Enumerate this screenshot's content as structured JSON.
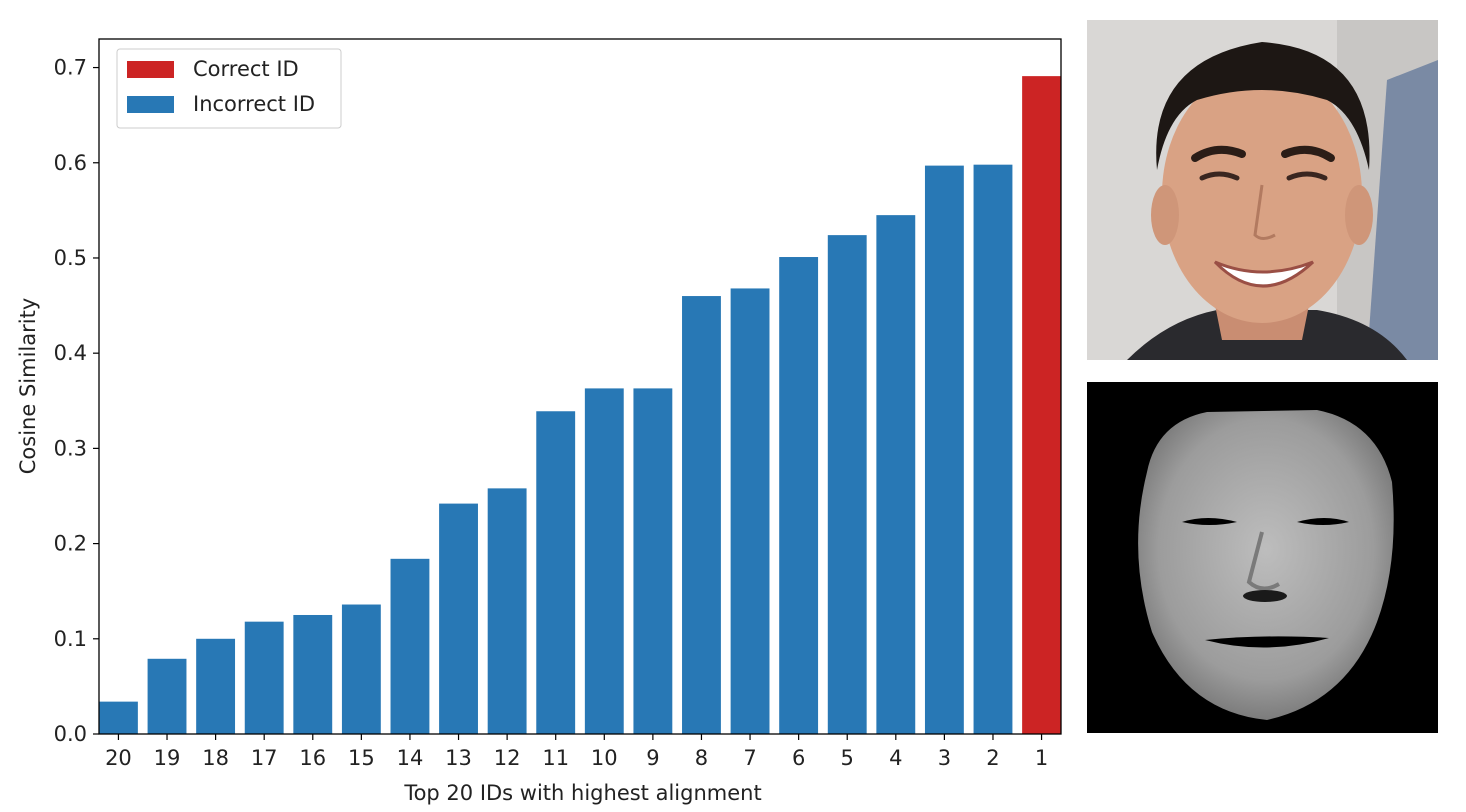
{
  "chart_data": {
    "type": "bar",
    "categories": [
      "20",
      "19",
      "18",
      "17",
      "16",
      "15",
      "14",
      "13",
      "12",
      "11",
      "10",
      "9",
      "8",
      "7",
      "6",
      "5",
      "4",
      "3",
      "2",
      "1"
    ],
    "values": [
      0.034,
      0.079,
      0.1,
      0.118,
      0.125,
      0.136,
      0.184,
      0.242,
      0.258,
      0.339,
      0.363,
      0.363,
      0.46,
      0.468,
      0.501,
      0.524,
      0.545,
      0.597,
      0.598,
      0.691
    ],
    "bar_group": [
      "incorrect",
      "incorrect",
      "incorrect",
      "incorrect",
      "incorrect",
      "incorrect",
      "incorrect",
      "incorrect",
      "incorrect",
      "incorrect",
      "incorrect",
      "incorrect",
      "incorrect",
      "incorrect",
      "incorrect",
      "incorrect",
      "incorrect",
      "incorrect",
      "incorrect",
      "correct"
    ],
    "title": "",
    "xlabel": "Top 20 IDs with highest alignment",
    "ylabel": "Cosine Similarity",
    "ylim": [
      0.0,
      0.73
    ],
    "yticks": [
      "0.0",
      "0.1",
      "0.2",
      "0.3",
      "0.4",
      "0.5",
      "0.6",
      "0.7"
    ],
    "grid": false,
    "legend": {
      "placement": "top-left",
      "entries": [
        {
          "label": "Correct ID",
          "color": "#cc2424"
        },
        {
          "label": "Incorrect ID",
          "color": "#2878b5"
        }
      ]
    },
    "colors": {
      "correct": "#cc2424",
      "incorrect": "#2878b5"
    }
  },
  "images": {
    "photo": "face-photo",
    "render": "face-3d-render"
  }
}
